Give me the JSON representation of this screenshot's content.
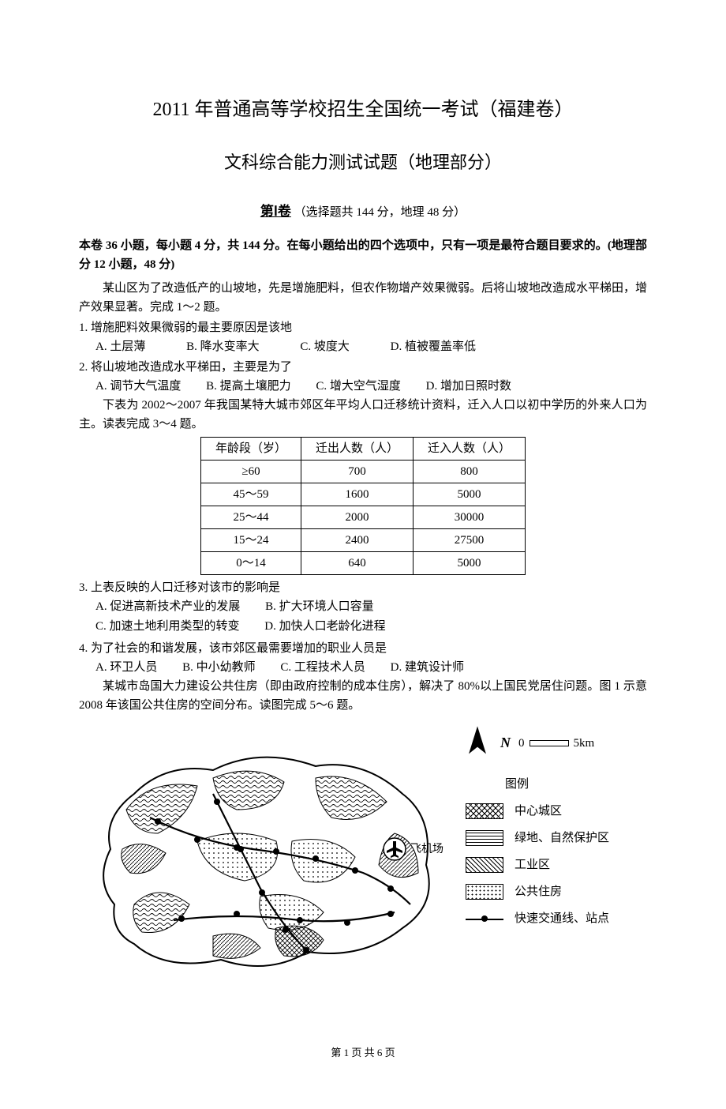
{
  "title_main": "2011 年普通高等学校招生全国统一考试（福建卷）",
  "title_sub": "文科综合能力测试试题（地理部分）",
  "section_label_bold": "第Ⅰ卷",
  "section_label_rest": "（选择题共 144 分，地理 48 分）",
  "instructions": "本卷 36 小题，每小题 4 分，共 144 分。在每小题给出的四个选项中，只有一项是最符合题目要求的。(地理部分 12 小题，48 分)",
  "passage1": "某山区为了改造低产的山坡地，先是增施肥料，但农作物增产效果微弱。后将山坡地改造成水平梯田，增产效果显著。完成 1～2 题。",
  "q1": {
    "stem": "1. 增施肥料效果微弱的最主要原因是该地",
    "opts": [
      "A. 土层薄",
      "B. 降水变率大",
      "C. 坡度大",
      "D. 植被覆盖率低"
    ]
  },
  "q2": {
    "stem": "2. 将山坡地改造成水平梯田，主要是为了",
    "opts": [
      "A. 调节大气温度",
      "B. 提高土壤肥力",
      "C. 增大空气湿度",
      "D. 增加日照时数"
    ]
  },
  "passage2": "下表为 2002～2007 年我国某特大城市郊区年平均人口迁移统计资料，迁入人口以初中学历的外来人口为主。读表完成 3～4 题。",
  "table": {
    "columns": [
      "年龄段（岁）",
      "迁出人数（人）",
      "迁入人数（人）"
    ],
    "rows": [
      [
        "≥60",
        "700",
        "800"
      ],
      [
        "45～59",
        "1600",
        "5000"
      ],
      [
        "25～44",
        "2000",
        "30000"
      ],
      [
        "15～24",
        "2400",
        "27500"
      ],
      [
        "0～14",
        "640",
        "5000"
      ]
    ]
  },
  "q3": {
    "stem": "3. 上表反映的人口迁移对该市的影响是",
    "opts": [
      "A. 促进高新技术产业的发展",
      "B. 扩大环境人口容量",
      "C. 加速土地利用类型的转变",
      "D. 加快人口老龄化进程"
    ]
  },
  "q4": {
    "stem": "4. 为了社会的和谐发展，该市郊区最需要增加的职业人员是",
    "opts": [
      "A. 环卫人员",
      "B. 中小幼教师",
      "C. 工程技术人员",
      "D. 建筑设计师"
    ]
  },
  "passage3": "某城市岛国大力建设公共住房（即由政府控制的成本住房），解决了 80%以上国民党居住问题。图 1 示意 2008 年该国公共住房的空间分布。读图完成 5～6 题。",
  "legend": {
    "north_label": "N",
    "scale_zero": "0",
    "scale_label": "5km",
    "title": "图例",
    "airport_label": "飞机场",
    "items": [
      {
        "pattern": "cross",
        "label": "中心城区"
      },
      {
        "pattern": "wave",
        "label": "绿地、自然保护区"
      },
      {
        "pattern": "lines",
        "label": "工业区"
      },
      {
        "pattern": "dots",
        "label": "公共住房"
      },
      {
        "pattern": "line",
        "label": "快速交通线、站点"
      }
    ]
  },
  "footer": "第 1 页 共 6 页"
}
